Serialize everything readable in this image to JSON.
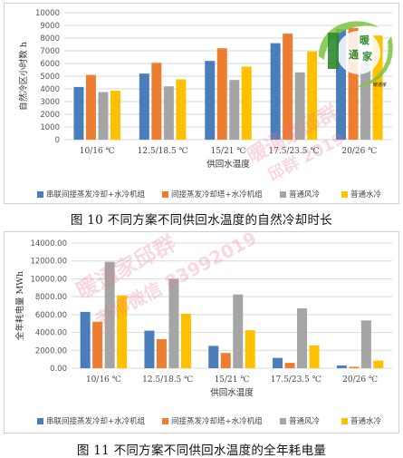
{
  "colors": {
    "series": [
      "#4a7ebb",
      "#ed7d31",
      "#a5a5a5",
      "#ffc000"
    ],
    "grid": "#d9d9d9",
    "logo_green": "#2e8b2e",
    "logo_ring": "#7cc242",
    "watermark": "#e6788c"
  },
  "captions": {
    "fig10": "图 10 不同方案不同供回水温度的自然冷却时长",
    "fig11": "图 11 不同方案不同供回水温度的全年耗电量"
  },
  "logo": {
    "text": "暖通家",
    "tag": "暖通家"
  },
  "watermarks": [
    "暖通家邱群",
    "邱群 2019",
    "暖通家邱群",
    "老师微信 83992019"
  ],
  "chart_data": [
    {
      "type": "bar",
      "title": "",
      "xlabel": "供回水温度",
      "ylabel": "自然冷区小时数 h",
      "ylim": [
        0,
        10000
      ],
      "yticks": [
        "0",
        "1000",
        "2000",
        "3000",
        "4000",
        "5000",
        "6000",
        "7000",
        "8000",
        "9000",
        "10000"
      ],
      "categories": [
        "10/16 ℃",
        "12.5/18.5 ℃",
        "15/21 ℃",
        "17.5/23.5 ℃",
        "20/26 ℃"
      ],
      "series": [
        {
          "name": "串联间接蒸发冷却+水冷机组",
          "values": [
            4150,
            5200,
            6200,
            7600,
            8700
          ]
        },
        {
          "name": "间接蒸发冷却塔+水冷机组",
          "values": [
            5100,
            6050,
            7200,
            8350,
            8800
          ]
        },
        {
          "name": "普通风冷",
          "values": [
            3750,
            4200,
            4700,
            5300,
            6000
          ]
        },
        {
          "name": "普通水冷",
          "values": [
            3850,
            4750,
            5750,
            6950,
            8200
          ]
        }
      ],
      "legend": "bottom"
    },
    {
      "type": "bar",
      "title": "",
      "xlabel": "供回水温度",
      "ylabel": "全年耗电量 MWh",
      "ylim": [
        0,
        14000
      ],
      "yticks": [
        "0.00",
        "2000.00",
        "4000.00",
        "6000.00",
        "8000.00",
        "10000.00",
        "12000.00",
        "14000.00"
      ],
      "categories": [
        "10/16 ℃",
        "12.5/18.5 ℃",
        "15/21 ℃",
        "17.5/23.5 ℃",
        "20/26 ℃"
      ],
      "series": [
        {
          "name": "串联间接蒸发冷却+水冷机组",
          "values": [
            6300,
            4200,
            2500,
            1150,
            300
          ]
        },
        {
          "name": "间接蒸发冷却塔+水冷机组",
          "values": [
            5200,
            3250,
            1700,
            600,
            150
          ]
        },
        {
          "name": "普通风冷",
          "values": [
            11900,
            10000,
            8250,
            6700,
            5350
          ]
        },
        {
          "name": "普通水冷",
          "values": [
            8150,
            6100,
            4250,
            2550,
            850
          ]
        }
      ],
      "legend": "bottom"
    }
  ]
}
